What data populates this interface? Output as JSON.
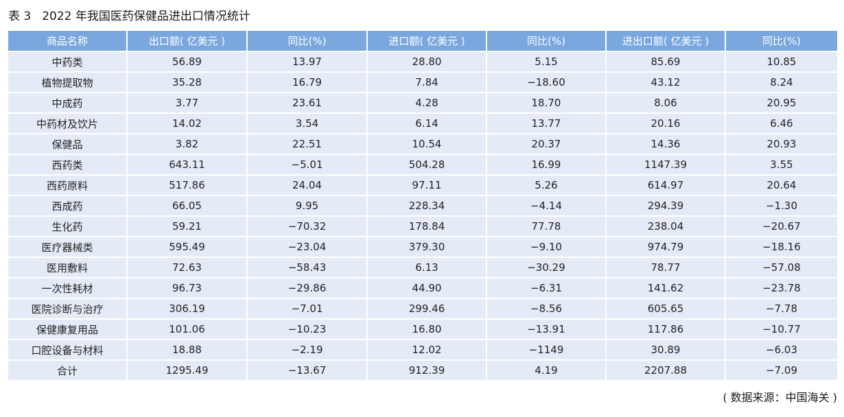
{
  "caption": {
    "number": "表 3",
    "title": "2022 年我国医药保健品进出口情况统计"
  },
  "table": {
    "headers": [
      "商品名称",
      "出口额( 亿美元 )",
      "同比(%)",
      "进口额( 亿美元 )",
      "同比(%)",
      "进出口额( 亿美元 )",
      "同比(%)"
    ],
    "rows": [
      [
        "中药类",
        "56.89",
        "13.97",
        "28.80",
        "5.15",
        "85.69",
        "10.85"
      ],
      [
        "植物提取物",
        "35.28",
        "16.79",
        "7.84",
        "−18.60",
        "43.12",
        "8.24"
      ],
      [
        "中成药",
        "3.77",
        "23.61",
        "4.28",
        "18.70",
        "8.06",
        "20.95"
      ],
      [
        "中药材及饮片",
        "14.02",
        "3.54",
        "6.14",
        "13.77",
        "20.16",
        "6.46"
      ],
      [
        "保健品",
        "3.82",
        "22.51",
        "10.54",
        "20.37",
        "14.36",
        "20.93"
      ],
      [
        "西药类",
        "643.11",
        "−5.01",
        "504.28",
        "16.99",
        "1147.39",
        "3.55"
      ],
      [
        "西药原料",
        "517.86",
        "24.04",
        "97.11",
        "5.26",
        "614.97",
        "20.64"
      ],
      [
        "西成药",
        "66.05",
        "9.95",
        "228.34",
        "−4.14",
        "294.39",
        "−1.30"
      ],
      [
        "生化药",
        "59.21",
        "−70.32",
        "178.84",
        "77.78",
        "238.04",
        "−20.67"
      ],
      [
        "医疗器械类",
        "595.49",
        "−23.04",
        "379.30",
        "−9.10",
        "974.79",
        "−18.16"
      ],
      [
        "医用敷料",
        "72.63",
        "−58.43",
        "6.13",
        "−30.29",
        "78.77",
        "−57.08"
      ],
      [
        "一次性耗材",
        "96.73",
        "−29.86",
        "44.90",
        "−6.31",
        "141.62",
        "−23.78"
      ],
      [
        "医院诊断与治疗",
        "306.19",
        "−7.01",
        "299.46",
        "−8.56",
        "605.65",
        "−7.78"
      ],
      [
        "保健康复用品",
        "101.06",
        "−10.23",
        "16.80",
        "−13.91",
        "117.86",
        "−10.77"
      ],
      [
        "口腔设备与材料",
        "18.88",
        "−2.19",
        "12.02",
        "−1149",
        "30.89",
        "−6.03"
      ],
      [
        "合计",
        "1295.49",
        "−13.67",
        "912.39",
        "4.19",
        "2207.88",
        "−7.09"
      ]
    ]
  },
  "source": "( 数据来源：中国海关 )",
  "colors": {
    "header_bg": "#7aa7de",
    "row_bg": "#e4ebf6"
  }
}
